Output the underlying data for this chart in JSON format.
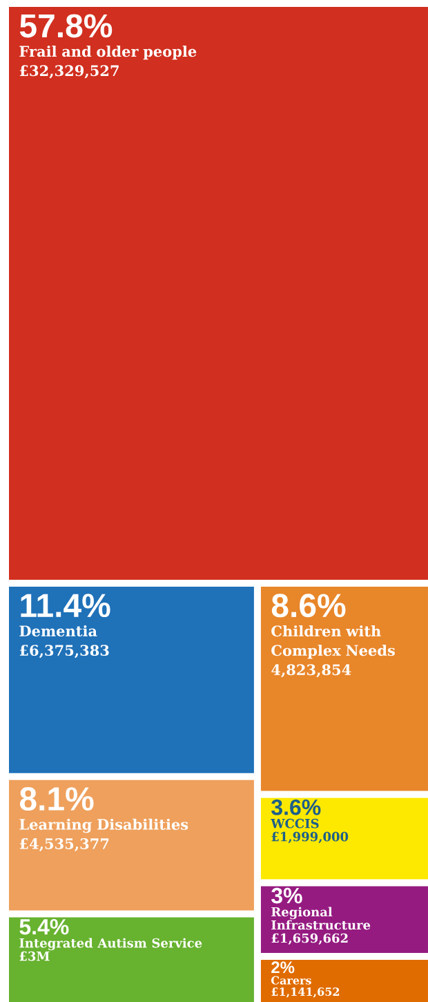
{
  "chart_data": {
    "type": "other",
    "categories": [
      "Frail and older people",
      "Dementia",
      "Learning Disabilities",
      "Integrated Autism Service",
      "Children with Complex Needs",
      "WCCIS",
      "Regional Infrastructure",
      "Carers"
    ],
    "values": [
      57.8,
      11.4,
      8.1,
      5.4,
      8.6,
      3.6,
      3,
      2
    ],
    "value_labels": [
      "57.8%",
      "11.4%",
      "8.1%",
      "5.4%",
      "8.6%",
      "3.6%",
      "3%",
      "2%"
    ],
    "annotations": [
      "£32,329,527",
      "£6,375,383",
      "£4,535,377",
      "£3M",
      "4,823,854",
      "£1,999,000",
      "£1,659,662",
      "£1,141,652"
    ],
    "colors": [
      "#d12f1f",
      "#1f71b8",
      "#eea05c",
      "#67b22f",
      "#e8862a",
      "#fde900",
      "#951b81",
      "#e06c00"
    ]
  }
}
